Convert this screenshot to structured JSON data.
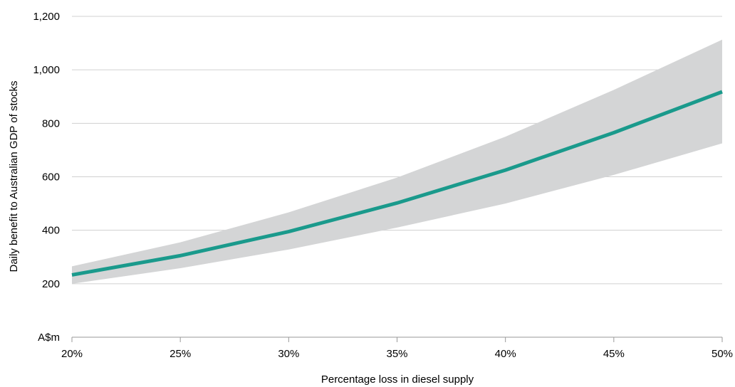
{
  "chart_data": {
    "type": "line",
    "x": [
      20,
      25,
      30,
      35,
      40,
      45,
      50
    ],
    "x_tick_labels": [
      "20%",
      "25%",
      "30%",
      "35%",
      "40%",
      "45%",
      "50%"
    ],
    "y_tick_labels": [
      "A$m",
      "200",
      "400",
      "600",
      "800",
      "1,000",
      "1,200"
    ],
    "y_ticks": [
      0,
      200,
      400,
      600,
      800,
      1000,
      1200
    ],
    "xlabel": "Percentage loss in diesel supply",
    "ylabel": "Daily benefit to Australian GDP of stocks",
    "xlim": [
      20,
      50
    ],
    "ylim": [
      0,
      1200
    ],
    "grid": "horizontal",
    "series": [
      {
        "values": [
          233,
          305,
          395,
          502,
          625,
          765,
          918
        ]
      }
    ],
    "band": {
      "lower": [
        200,
        258,
        328,
        410,
        500,
        607,
        725
      ],
      "upper": [
        265,
        355,
        467,
        597,
        750,
        925,
        1113
      ]
    },
    "colors": {
      "line": "#1a9a8c",
      "band": "#d4d5d6",
      "grid": "#d0d0d0",
      "axis": "#999999"
    }
  }
}
